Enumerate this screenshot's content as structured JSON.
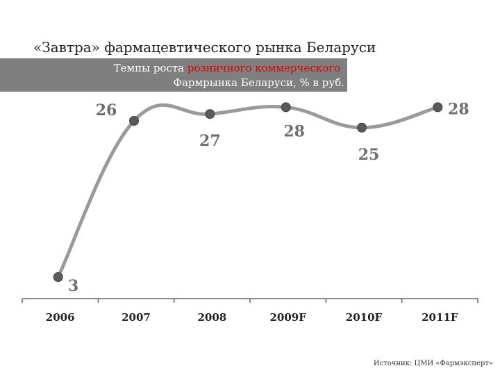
{
  "title": "«Завтра» фармацевтического рынка Беларуси",
  "subtitle": {
    "line1_prefix": "Темпы роста ",
    "line1_highlight": "розничного коммерческого",
    "line2": "Фармрынка Беларуси, % в руб."
  },
  "source": "Источник: ЦМИ «Фармэксперт»",
  "colors": {
    "line": "#9a9a9a",
    "marker": "#5a5a5a",
    "label": "#6e6e6e",
    "axis": "#666666",
    "highlight": "#e00000",
    "band": "#7f7f7f"
  },
  "chart_data": {
    "type": "line",
    "categories": [
      "2006",
      "2007",
      "2008",
      "2009F",
      "2010F",
      "2011F"
    ],
    "values": [
      3,
      26,
      27,
      28,
      25,
      28
    ],
    "data_labels": [
      "3",
      "26",
      "27",
      "28",
      "25",
      "28"
    ],
    "ylim": [
      0,
      30
    ],
    "grid": false,
    "legend": "none"
  }
}
